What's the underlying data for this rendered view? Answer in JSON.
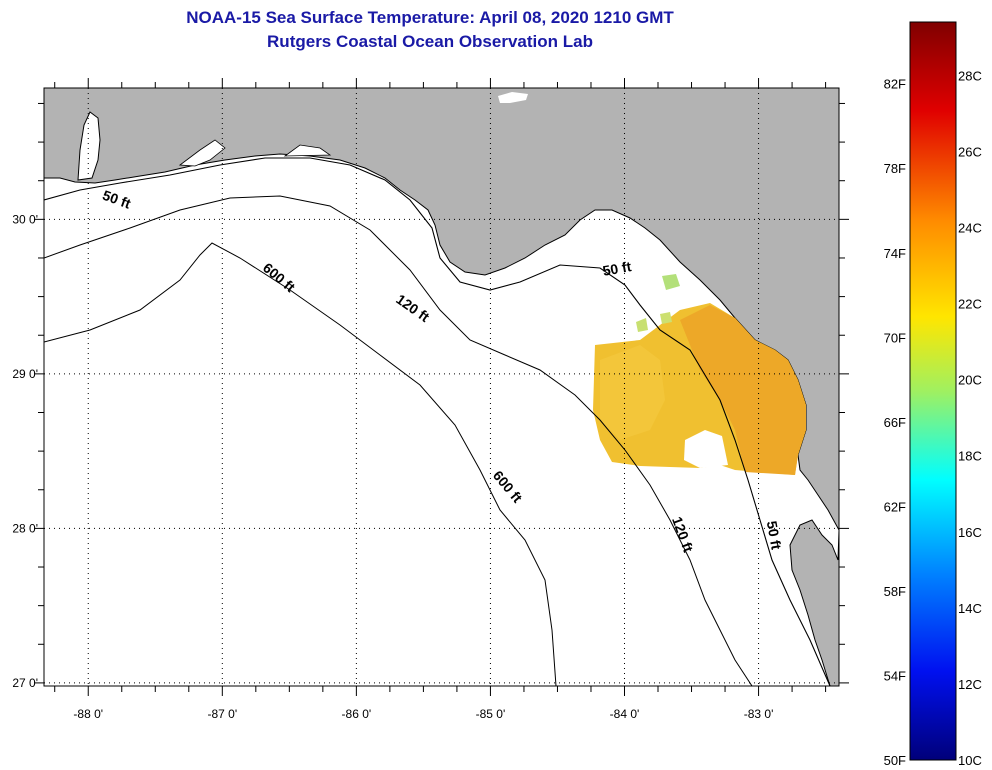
{
  "header": {
    "title_line1": "NOAA-15 Sea Surface Temperature:  April 08, 2020 1210 GMT",
    "title_line2": "Rutgers Coastal Ocean Observation Lab"
  },
  "map": {
    "lat_labels": [
      "30 0'",
      "29 0'",
      "28 0'",
      "27 0'"
    ],
    "lat_values": [
      30,
      29,
      28,
      27
    ],
    "lon_labels": [
      "-88 0'",
      "-87 0'",
      "-86 0'",
      "-85 0'",
      "-84 0'",
      "-83 0'"
    ],
    "lon_values": [
      -88,
      -87,
      -86,
      -85,
      -84,
      -83
    ],
    "lat_range": [
      26.98,
      30.85
    ],
    "lon_range": [
      -88.33,
      -82.4
    ],
    "contour_labels": [
      {
        "text": "50 ft",
        "lon": -87.8,
        "lat": 30.1,
        "angle": 20
      },
      {
        "text": "600 ft",
        "lon": -86.6,
        "lat": 29.6,
        "angle": 40
      },
      {
        "text": "120 ft",
        "lon": -85.6,
        "lat": 29.4,
        "angle": 35
      },
      {
        "text": "50 ft",
        "lon": -84.05,
        "lat": 29.65,
        "angle": -10
      },
      {
        "text": "600 ft",
        "lon": -84.9,
        "lat": 28.25,
        "angle": 50
      },
      {
        "text": "120 ft",
        "lon": -83.6,
        "lat": 27.95,
        "angle": 70
      },
      {
        "text": "50 ft",
        "lon": -82.92,
        "lat": 27.95,
        "angle": 80
      }
    ]
  },
  "colorbar": {
    "fahrenheit_labels": [
      "82F",
      "78F",
      "74F",
      "70F",
      "66F",
      "62F",
      "58F",
      "54F",
      "50F"
    ],
    "celsius_labels": [
      "28C",
      "26C",
      "24C",
      "22C",
      "20C",
      "18C",
      "16C",
      "14C",
      "12C",
      "10C"
    ],
    "stops": [
      "#800000",
      "#ff0000",
      "#ff8000",
      "#ffff00",
      "#80ff80",
      "#00ffff",
      "#0080ff",
      "#0000ff",
      "#000080"
    ],
    "range_c": [
      10,
      29.4
    ]
  },
  "colors": {
    "land": "#b3b3b3",
    "sst_warm": "#f2a020",
    "sst_mid": "#f2bf30",
    "title": "#1a1aa6"
  }
}
